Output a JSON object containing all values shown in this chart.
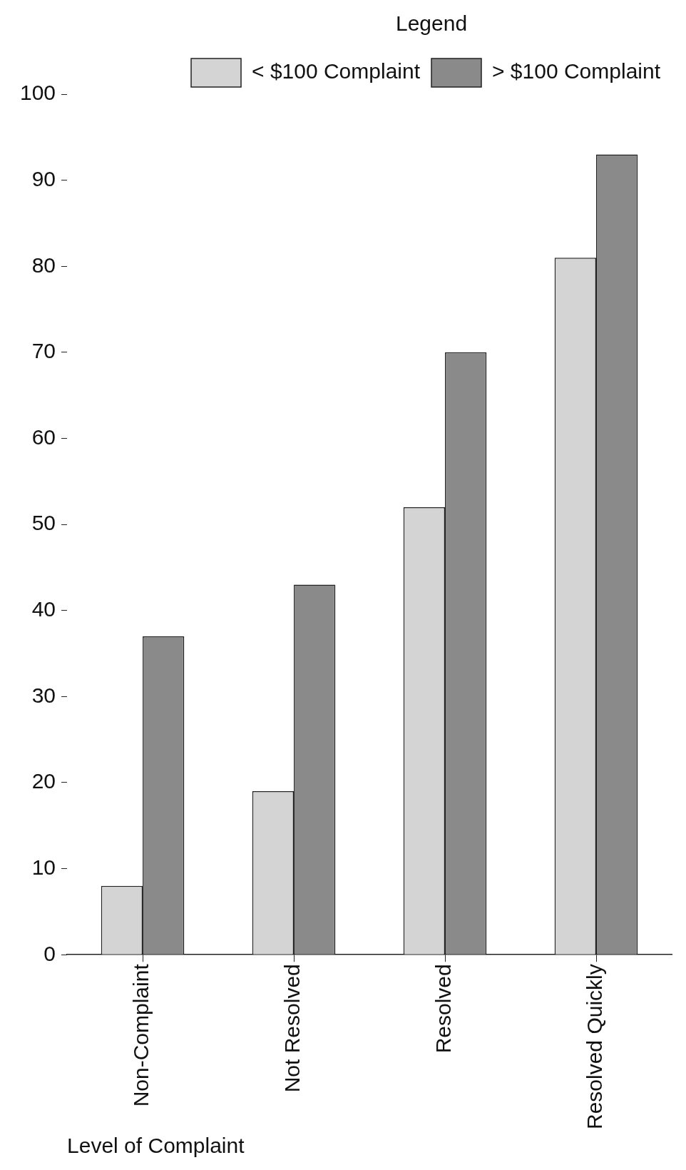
{
  "chart_data": {
    "type": "bar",
    "xlabel": "Level of Complaint",
    "legend_title": "Legend",
    "categories": [
      "Non-Complaint",
      "Not Resolved",
      "Resolved",
      "Resolved Quickly"
    ],
    "series": [
      {
        "name": "< $100 Complaint",
        "color": "#d4d4d4",
        "values": [
          8,
          19,
          52,
          81
        ]
      },
      {
        "name": "> $100 Complaint",
        "color": "#8a8a8a",
        "values": [
          37,
          43,
          70,
          93
        ]
      }
    ],
    "ylim": [
      0,
      100
    ],
    "yticks": [
      0,
      10,
      20,
      30,
      40,
      50,
      60,
      70,
      80,
      90,
      100
    ],
    "grid": false,
    "legend": "top right"
  }
}
